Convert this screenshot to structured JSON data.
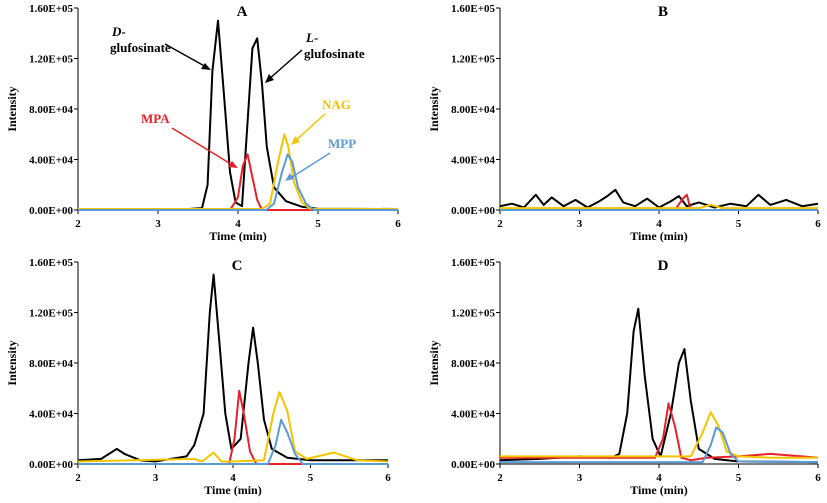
{
  "chart_data": [
    {
      "type": "line",
      "title": "A",
      "xlabel": "Time (min)",
      "ylabel": "Intensity",
      "xlim": [
        2,
        6
      ],
      "ylim": [
        0,
        160000
      ],
      "xticks": [
        "2",
        "3",
        "4",
        "5",
        "6"
      ],
      "yticks": [
        "0.00E+00",
        "4.00E+04",
        "8.00E+04",
        "1.20E+05",
        "1.60E+05"
      ],
      "annotations": [
        {
          "prefix": "D",
          "line1": "-",
          "line2": "glufosinate",
          "color": "#000000"
        },
        {
          "prefix": "L",
          "line1": "-",
          "line2": "glufosinate",
          "color": "#000000"
        },
        {
          "line1": "MPA",
          "color": "#e8202a"
        },
        {
          "line1": "NAG",
          "color": "#f5c400"
        },
        {
          "line1": "MPP",
          "color": "#5b9bd5"
        }
      ],
      "series": [
        {
          "name": "black",
          "color": "#000000",
          "x": [
            2.0,
            3.0,
            3.4,
            3.55,
            3.62,
            3.68,
            3.75,
            3.82,
            3.9,
            3.97,
            4.05,
            4.12,
            4.18,
            4.24,
            4.3,
            4.36,
            4.45,
            4.6,
            4.8,
            5.0,
            6.0
          ],
          "y": [
            800,
            800,
            900,
            1500,
            20000,
            110000,
            150000,
            95000,
            30000,
            6000,
            3000,
            70000,
            128000,
            136000,
            100000,
            50000,
            18000,
            7000,
            2500,
            1000,
            800
          ]
        },
        {
          "name": "red",
          "color": "#e8202a",
          "x": [
            2.0,
            3.9,
            4.0,
            4.06,
            4.12,
            4.18,
            4.24,
            4.3,
            6.0
          ],
          "y": [
            0,
            0,
            10000,
            35000,
            44000,
            26000,
            8000,
            0,
            0
          ]
        },
        {
          "name": "yellow",
          "color": "#f5c400",
          "x": [
            2.0,
            4.3,
            4.4,
            4.5,
            4.58,
            4.63,
            4.7,
            4.8,
            4.9,
            6.0
          ],
          "y": [
            800,
            800,
            5000,
            38000,
            60000,
            50000,
            22000,
            6000,
            1000,
            800
          ]
        },
        {
          "name": "blue",
          "color": "#5b9bd5",
          "x": [
            2.0,
            4.35,
            4.45,
            4.55,
            4.62,
            4.68,
            4.75,
            4.85,
            4.95,
            6.0
          ],
          "y": [
            0,
            0,
            5000,
            30000,
            44000,
            38000,
            18000,
            5000,
            0,
            0
          ]
        }
      ]
    },
    {
      "type": "line",
      "title": "B",
      "xlabel": "Time (min)",
      "ylabel": "Intensity",
      "xlim": [
        2,
        6
      ],
      "ylim": [
        0,
        160000
      ],
      "xticks": [
        "2",
        "3",
        "4",
        "5",
        "6"
      ],
      "yticks": [
        "0.00E+00",
        "4.00E+04",
        "8.00E+04",
        "1.20E+05",
        "1.60E+05"
      ],
      "series": [
        {
          "name": "black",
          "color": "#000000",
          "x": [
            2.0,
            2.15,
            2.3,
            2.45,
            2.55,
            2.65,
            2.8,
            2.95,
            3.1,
            3.25,
            3.35,
            3.45,
            3.55,
            3.7,
            3.85,
            4.0,
            4.15,
            4.25,
            4.35,
            4.5,
            4.7,
            4.9,
            5.1,
            5.25,
            5.4,
            5.6,
            5.8,
            6.0
          ],
          "y": [
            3000,
            5000,
            2000,
            12000,
            4000,
            10000,
            3000,
            8000,
            2000,
            7000,
            11000,
            16000,
            6000,
            3000,
            9000,
            2000,
            7000,
            11000,
            3000,
            6000,
            2000,
            5000,
            3000,
            12000,
            4000,
            8000,
            3000,
            5000
          ]
        },
        {
          "name": "red",
          "color": "#e8202a",
          "x": [
            2.0,
            4.2,
            4.3,
            4.35,
            4.4,
            6.0
          ],
          "y": [
            0,
            0,
            9000,
            12000,
            0,
            0
          ]
        },
        {
          "name": "yellow",
          "color": "#f5c400",
          "x": [
            2.0,
            4.5,
            4.65,
            4.8,
            6.0
          ],
          "y": [
            1500,
            1500,
            4000,
            1500,
            1500
          ]
        },
        {
          "name": "blue",
          "color": "#5b9bd5",
          "x": [
            2.0,
            6.0
          ],
          "y": [
            0,
            0
          ]
        }
      ]
    },
    {
      "type": "line",
      "title": "C",
      "xlabel": "Time (min)",
      "ylabel": "Intensity",
      "xlim": [
        2,
        6
      ],
      "ylim": [
        0,
        160000
      ],
      "xticks": [
        "2",
        "3",
        "4",
        "5",
        "6"
      ],
      "yticks": [
        "0.00E+00",
        "4.00E+04",
        "8.00E+04",
        "1.20E+05",
        "1.60E+05"
      ],
      "series": [
        {
          "name": "black",
          "color": "#000000",
          "x": [
            2.0,
            2.3,
            2.5,
            2.6,
            2.8,
            3.0,
            3.2,
            3.4,
            3.5,
            3.62,
            3.7,
            3.75,
            3.82,
            3.9,
            3.98,
            4.1,
            4.2,
            4.26,
            4.32,
            4.4,
            4.5,
            4.7,
            5.0,
            5.5,
            6.0
          ],
          "y": [
            3000,
            4000,
            12000,
            8000,
            3000,
            2000,
            4000,
            6000,
            15000,
            40000,
            120000,
            150000,
            100000,
            40000,
            12000,
            20000,
            80000,
            108000,
            80000,
            35000,
            12000,
            5000,
            3000,
            3000,
            3000
          ]
        },
        {
          "name": "red",
          "color": "#e8202a",
          "x": [
            2.0,
            3.95,
            4.02,
            4.08,
            4.14,
            4.22,
            4.3,
            6.0
          ],
          "y": [
            0,
            0,
            20000,
            58000,
            40000,
            10000,
            0,
            0
          ]
        },
        {
          "name": "yellow",
          "color": "#f5c400",
          "x": [
            2.0,
            3.5,
            3.6,
            3.75,
            3.85,
            4.0,
            4.4,
            4.52,
            4.6,
            4.7,
            4.8,
            4.95,
            5.3,
            5.6,
            6.0
          ],
          "y": [
            2000,
            4000,
            2000,
            9000,
            2000,
            2000,
            3000,
            40000,
            57000,
            42000,
            10000,
            4000,
            9000,
            3000,
            2000
          ]
        },
        {
          "name": "blue",
          "color": "#5b9bd5",
          "x": [
            2.0,
            4.45,
            4.55,
            4.62,
            4.7,
            4.8,
            4.9,
            6.0
          ],
          "y": [
            0,
            0,
            15000,
            35000,
            25000,
            8000,
            0,
            0
          ]
        }
      ]
    },
    {
      "type": "line",
      "title": "D",
      "xlabel": "Time (min)",
      "ylabel": "Intensity",
      "xlim": [
        2,
        6
      ],
      "ylim": [
        0,
        160000
      ],
      "xticks": [
        "2",
        "3",
        "4",
        "5",
        "6"
      ],
      "yticks": [
        "0.00E+00",
        "4.00E+04",
        "8.00E+04",
        "1.20E+05",
        "1.60E+05"
      ],
      "series": [
        {
          "name": "black",
          "color": "#000000",
          "x": [
            2.0,
            2.5,
            3.0,
            3.4,
            3.5,
            3.6,
            3.68,
            3.74,
            3.82,
            3.92,
            4.02,
            4.15,
            4.25,
            4.32,
            4.4,
            4.5,
            4.7,
            5.0,
            6.0
          ],
          "y": [
            3000,
            4000,
            6000,
            5000,
            8000,
            40000,
            105000,
            123000,
            70000,
            20000,
            6000,
            40000,
            80000,
            91000,
            50000,
            12000,
            4000,
            2000,
            1500
          ]
        },
        {
          "name": "red",
          "color": "#e8202a",
          "x": [
            2.0,
            3.95,
            4.05,
            4.12,
            4.2,
            4.28,
            4.4,
            4.6,
            5.0,
            5.4,
            5.8,
            6.0
          ],
          "y": [
            5000,
            5000,
            20000,
            48000,
            30000,
            5000,
            3000,
            5000,
            6000,
            8000,
            6000,
            5000
          ]
        },
        {
          "name": "yellow",
          "color": "#f5c400",
          "x": [
            2.0,
            4.4,
            4.55,
            4.65,
            4.75,
            4.85,
            5.0,
            5.4,
            6.0
          ],
          "y": [
            6000,
            6000,
            25000,
            41000,
            30000,
            10000,
            6000,
            5000,
            5000
          ]
        },
        {
          "name": "blue",
          "color": "#5b9bd5",
          "x": [
            2.0,
            4.55,
            4.65,
            4.72,
            4.8,
            4.9,
            5.0,
            6.0
          ],
          "y": [
            1500,
            1500,
            15000,
            29000,
            25000,
            8000,
            2000,
            1500
          ]
        }
      ]
    }
  ]
}
